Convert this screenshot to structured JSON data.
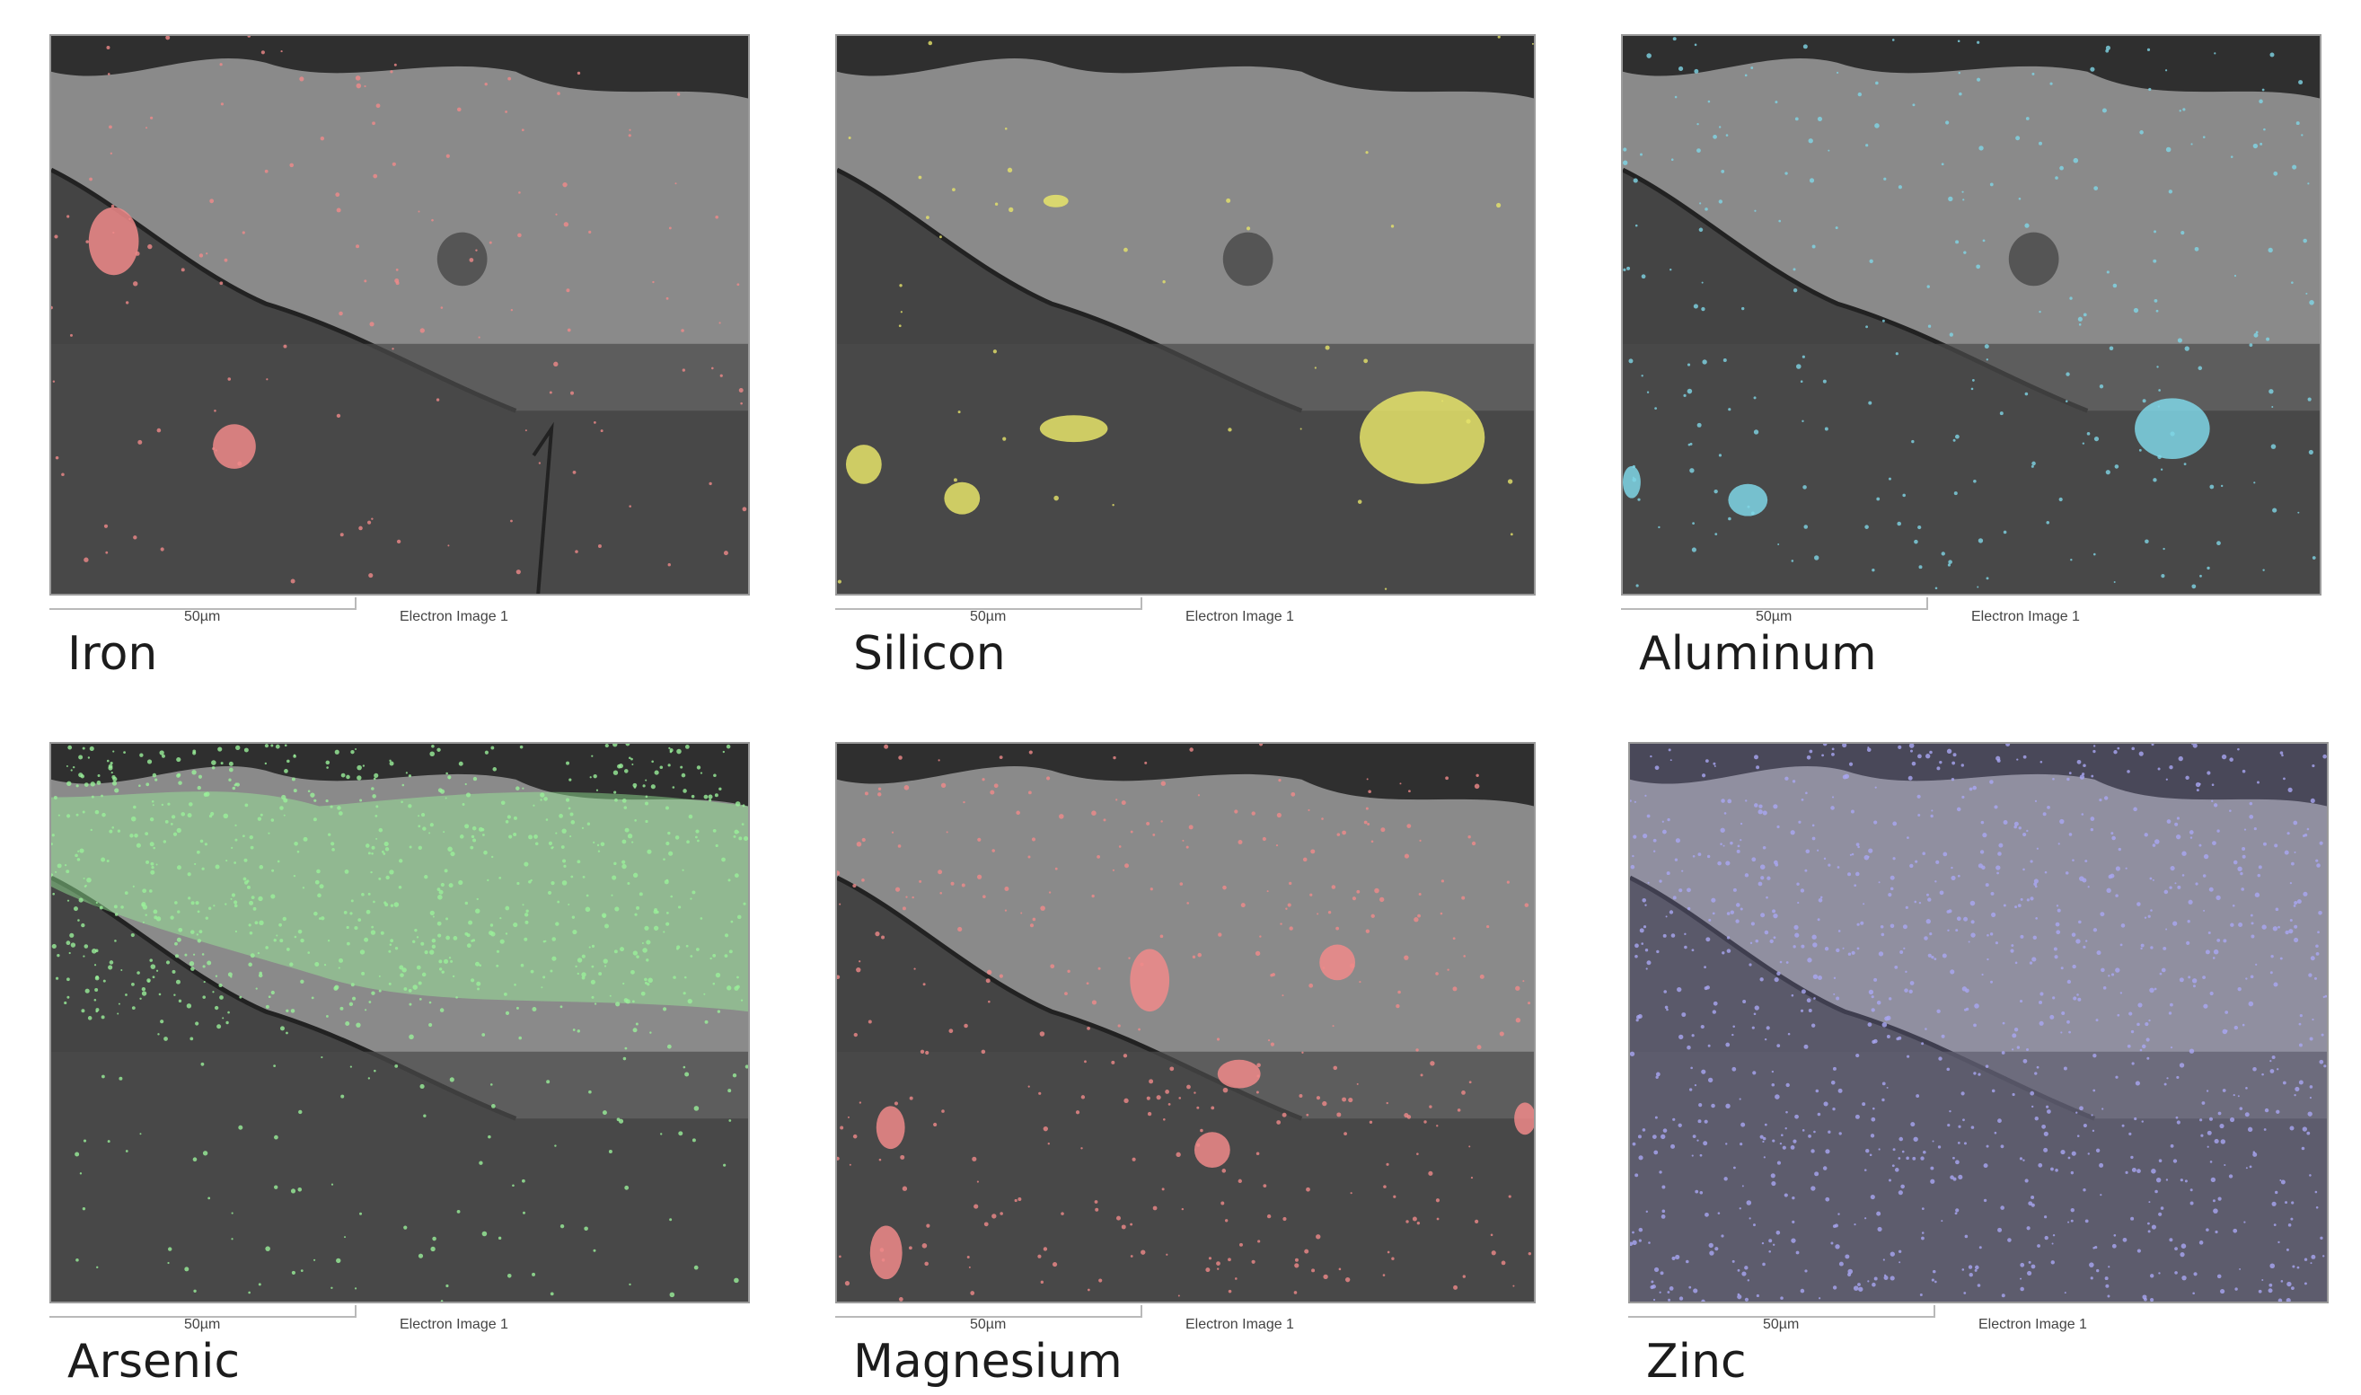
{
  "panels": [
    {
      "element": "Iron",
      "scale_label": "50µm",
      "caption": "Electron Image 1",
      "overlay_color": "#f08a8a"
    },
    {
      "element": "Silicon",
      "scale_label": "50µm",
      "caption": "Electron Image 1",
      "overlay_color": "#e6e46a"
    },
    {
      "element": "Aluminum",
      "scale_label": "50µm",
      "caption": "Electron Image 1",
      "overlay_color": "#7fd6e6"
    },
    {
      "element": "Arsenic",
      "scale_label": "50µm",
      "caption": "Electron Image 1",
      "overlay_color": "#9af09a"
    },
    {
      "element": "Magnesium",
      "scale_label": "50µm",
      "caption": "Electron Image 1",
      "overlay_color": "#f08a8a"
    },
    {
      "element": "Zinc",
      "scale_label": "50µm",
      "caption": "Electron Image 1",
      "overlay_color": "#a9a6f2"
    }
  ]
}
